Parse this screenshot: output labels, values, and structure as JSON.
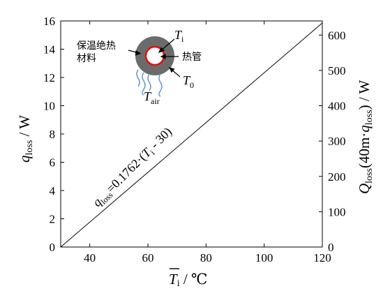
{
  "chart_data": {
    "type": "line",
    "title": "",
    "x_axis": {
      "label_main": "T",
      "label_sub": "i",
      "label_unit": " / ℃",
      "range": [
        30,
        120
      ],
      "ticks": [
        40,
        60,
        80,
        100,
        120
      ]
    },
    "y_axis_left": {
      "label_main": "q",
      "label_sub": "loss",
      "label_unit": " / W",
      "range": [
        0,
        16
      ],
      "ticks": [
        0,
        2,
        4,
        6,
        8,
        10,
        12,
        14,
        16
      ]
    },
    "y_axis_right": {
      "label_main": "Q",
      "label_sub": "loss",
      "label_paren": "(40m·",
      "label_q": "q",
      "label_qsub": "loss",
      "label_close": ")",
      "label_unit": " / W",
      "range": [
        0,
        640
      ],
      "ticks": [
        0,
        100,
        200,
        300,
        400,
        500,
        600
      ]
    },
    "series": [
      {
        "x": [
          30,
          120
        ],
        "y": [
          0,
          15.858
        ],
        "equation": {
          "q": "q",
          "qsub": "loss",
          "eq": "=0.1762·(",
          "t": "T",
          "tsub": "i",
          "rest": " - 30)"
        }
      }
    ],
    "inset": {
      "insulation_label_line1": "保温绝热",
      "insulation_label_line2": "材料",
      "pipe_label": "热管",
      "ti_main": "T",
      "ti_sub": "i",
      "t0_main": "T",
      "t0_sub": "0",
      "tair_main": "T",
      "tair_sub": "air"
    },
    "colors": {
      "insulation": "#6b6b6b",
      "pipe_ring": "#e01010",
      "heat_waves": "#5a8fd0",
      "line": "#000000"
    }
  }
}
